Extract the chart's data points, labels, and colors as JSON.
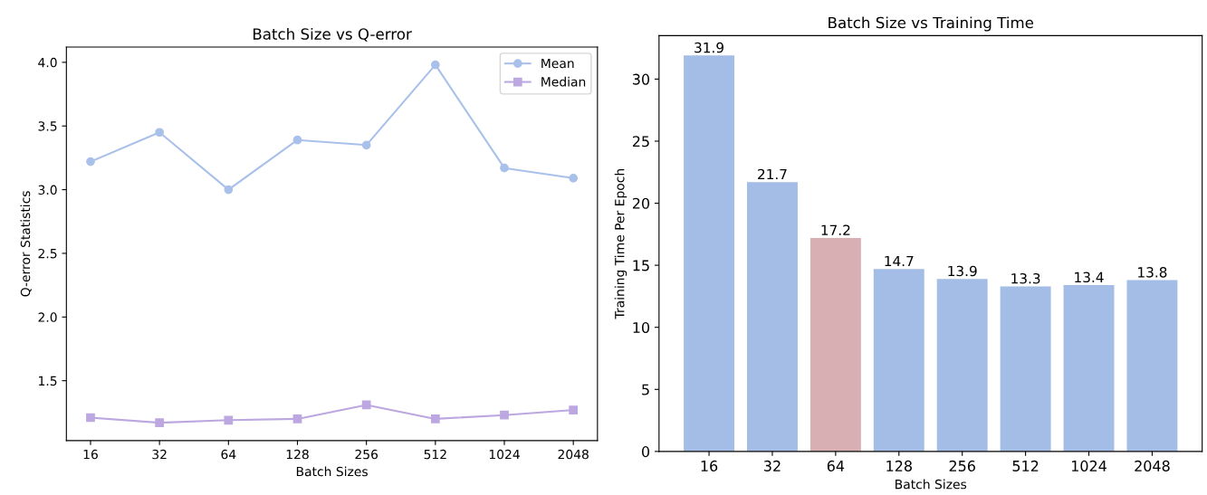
{
  "chart_data": [
    {
      "type": "line",
      "title": "Batch Size vs Q-error",
      "xlabel": "Batch Sizes",
      "ylabel": "Q-error Statistics",
      "categories": [
        "16",
        "32",
        "64",
        "128",
        "256",
        "512",
        "1024",
        "2048"
      ],
      "series": [
        {
          "name": "Mean",
          "color": "#a9c1ea",
          "marker": "circle",
          "values": [
            3.22,
            3.45,
            3.0,
            3.39,
            3.35,
            3.98,
            3.17,
            3.09
          ]
        },
        {
          "name": "Median",
          "color": "#bca7e0",
          "marker": "square",
          "values": [
            1.21,
            1.17,
            1.19,
            1.2,
            1.31,
            1.2,
            1.23,
            1.27
          ]
        }
      ],
      "ylim": [
        1.03,
        4.12
      ],
      "yticks": [
        {
          "value": 1.5,
          "label": "1.5"
        },
        {
          "value": 2.0,
          "label": "2.0"
        },
        {
          "value": 2.5,
          "label": "2.5"
        },
        {
          "value": 3.0,
          "label": "3.0"
        },
        {
          "value": 3.5,
          "label": "3.5"
        },
        {
          "value": 4.0,
          "label": "4.0"
        }
      ],
      "legend": "top right",
      "grid": false,
      "line_style": "solid"
    },
    {
      "type": "bar",
      "title": "Batch Size vs Training Time",
      "xlabel": "Batch Sizes",
      "ylabel": "Training Time Per Epoch",
      "categories": [
        "16",
        "32",
        "64",
        "128",
        "256",
        "512",
        "1024",
        "2048"
      ],
      "values": [
        31.9,
        21.7,
        17.2,
        14.7,
        13.9,
        13.3,
        13.4,
        13.8
      ],
      "colors": [
        "#a3bde6",
        "#a3bde6",
        "#d8afb3",
        "#a3bde6",
        "#a3bde6",
        "#a3bde6",
        "#a3bde6",
        "#a3bde6"
      ],
      "ylim": [
        0,
        33.5
      ],
      "yticks": [
        0,
        5,
        10,
        15,
        20,
        25,
        30
      ],
      "data_labels": true,
      "grid": false
    }
  ]
}
